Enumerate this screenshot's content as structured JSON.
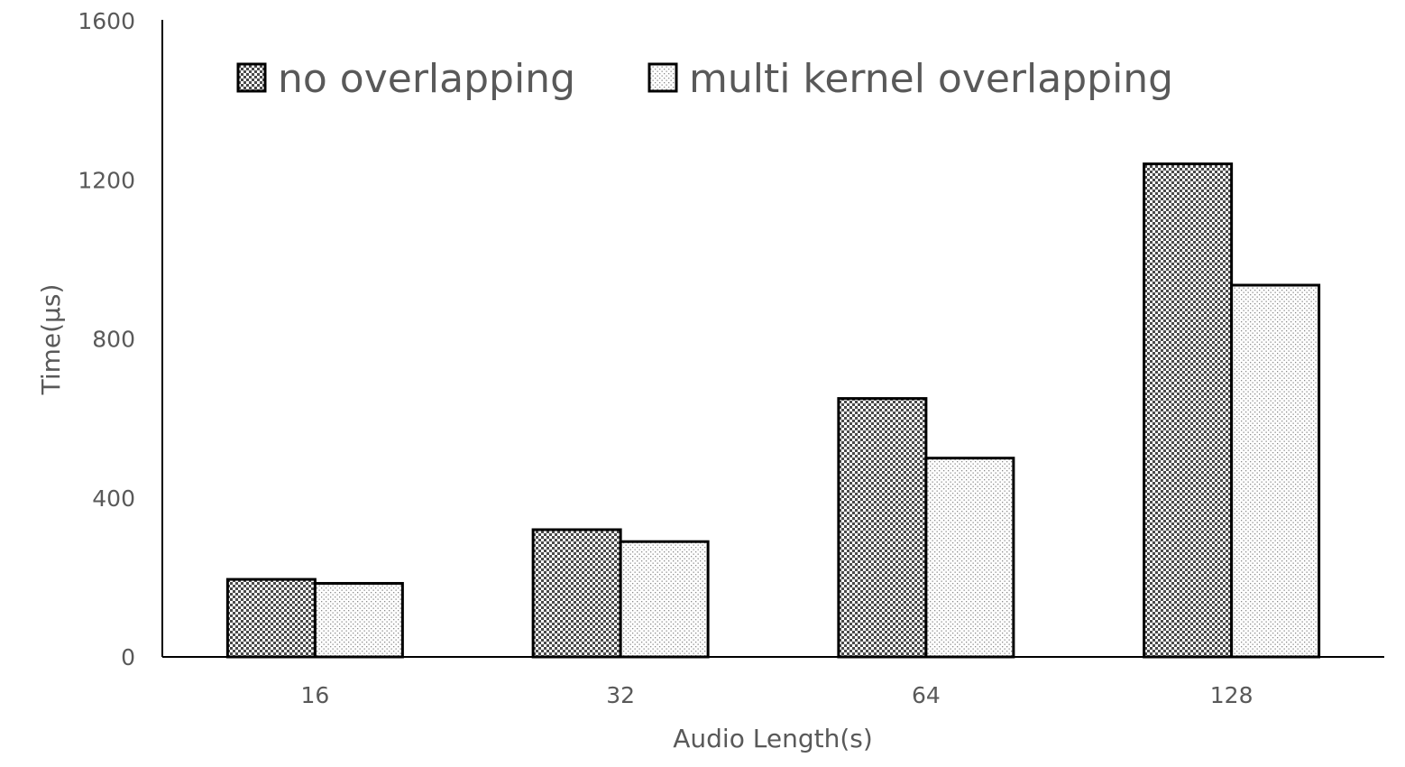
{
  "chart_data": {
    "type": "bar",
    "categories": [
      "16",
      "32",
      "64",
      "128"
    ],
    "series": [
      {
        "name": "no overlapping",
        "values": [
          195,
          320,
          650,
          1240
        ],
        "pattern": "checker"
      },
      {
        "name": "multi kernel overlapping",
        "values": [
          185,
          290,
          500,
          935
        ],
        "pattern": "dots"
      }
    ],
    "xlabel": "Audio Length(s)",
    "ylabel": "Time(µs)",
    "ylim": [
      0,
      1600
    ],
    "yticks": [
      0,
      400,
      800,
      1200,
      1600
    ],
    "grid": false,
    "legend_position": "top"
  }
}
